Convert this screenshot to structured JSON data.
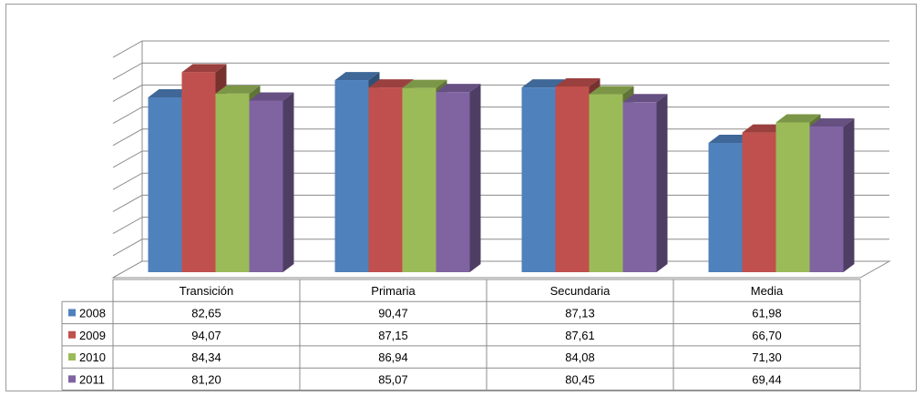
{
  "chart_data": {
    "type": "bar",
    "categories": [
      "Transición",
      "Primaria",
      "Secundaria",
      "Media"
    ],
    "series": [
      {
        "name": "2008",
        "color": "#4f81bd",
        "values": [
          82.65,
          90.47,
          87.13,
          61.98
        ],
        "labels": [
          "82,65",
          "90,47",
          "87,13",
          "61,98"
        ]
      },
      {
        "name": "2009",
        "color": "#c0504d",
        "values": [
          94.07,
          87.15,
          87.61,
          66.7
        ],
        "labels": [
          "94,07",
          "87,15",
          "87,61",
          "66,70"
        ]
      },
      {
        "name": "2010",
        "color": "#9bbb59",
        "values": [
          84.34,
          86.94,
          84.08,
          71.3
        ],
        "labels": [
          "84,34",
          "86,94",
          "84,08",
          "71,30"
        ]
      },
      {
        "name": "2011",
        "color": "#8064a2",
        "values": [
          81.2,
          85.07,
          80.45,
          69.44
        ],
        "labels": [
          "81,20",
          "85,07",
          "80,45",
          "69,44"
        ]
      }
    ],
    "title": "",
    "xlabel": "",
    "ylabel": "",
    "ylim": [
      0,
      100
    ],
    "grid": true,
    "legend": "data-table-left",
    "style": "3d-clustered-column"
  }
}
